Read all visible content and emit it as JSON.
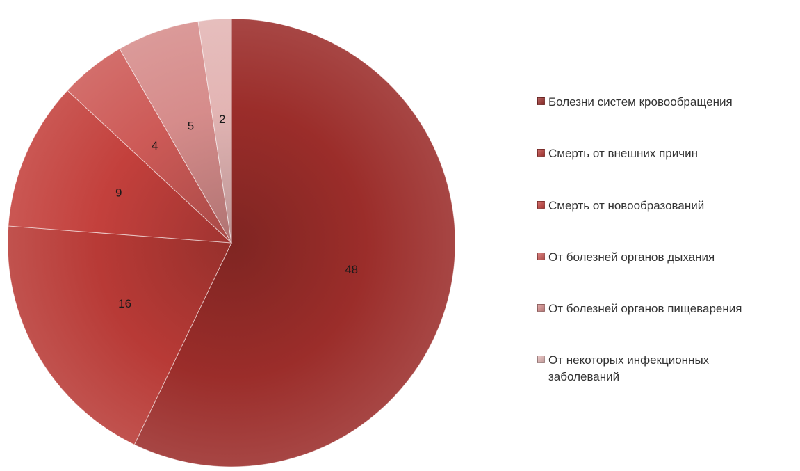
{
  "chart_data": {
    "type": "pie",
    "title": "",
    "categories": [
      "Болезни систем кровообращения",
      "Смерть от внешних причин",
      "Смерть от новообразований",
      "От болезней органов дыхания",
      "От болезней органов пищеварения",
      "От некоторых инфекционных заболеваний"
    ],
    "values": [
      48,
      16,
      9,
      4,
      5,
      2
    ],
    "colors": [
      "#9b2d2a",
      "#b83a36",
      "#c3403c",
      "#cd5a57",
      "#d68c8b",
      "#e3b5b4"
    ],
    "data_labels": [
      "48",
      "16",
      "9",
      "4",
      "5",
      "2"
    ],
    "start_angle_deg": 0,
    "direction": "clockwise",
    "legend_position": "right"
  }
}
